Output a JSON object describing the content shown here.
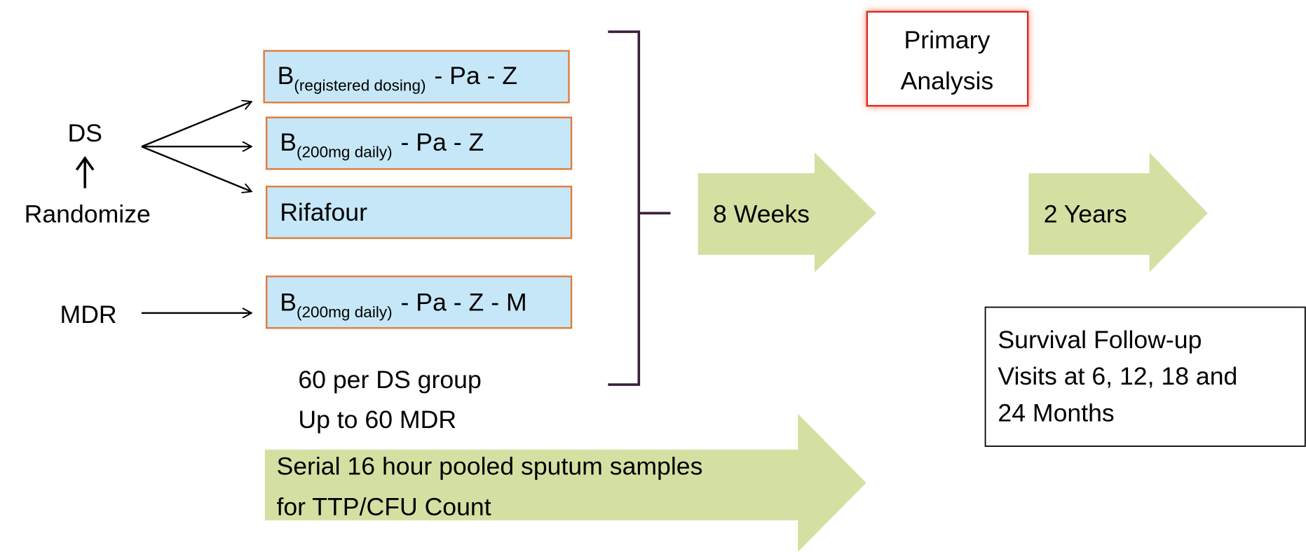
{
  "groups": {
    "ds": "DS",
    "randomize": "Randomize",
    "mdr": "MDR"
  },
  "arms": [
    {
      "base": "B",
      "sub": "(registered dosing)",
      "rest": "- Pa - Z"
    },
    {
      "base": "B",
      "sub": "(200mg  daily)",
      "rest": "- Pa - Z"
    },
    {
      "base": "Rifafour"
    },
    {
      "base": "B",
      "sub": "(200mg  daily)",
      "rest": "- Pa - Z - M"
    }
  ],
  "enrollment": [
    "60 per DS group",
    "Up to 60 MDR"
  ],
  "phases": [
    "8 Weeks",
    "2 Years"
  ],
  "primary_analysis": [
    "Primary",
    "Analysis"
  ],
  "sampling": [
    "Serial 16 hour pooled sputum samples",
    "for TTP/CFU Count"
  ],
  "follow_up": [
    "Survival Follow-up",
    "Visits at 6, 12, 18 and",
    "24 Months"
  ]
}
